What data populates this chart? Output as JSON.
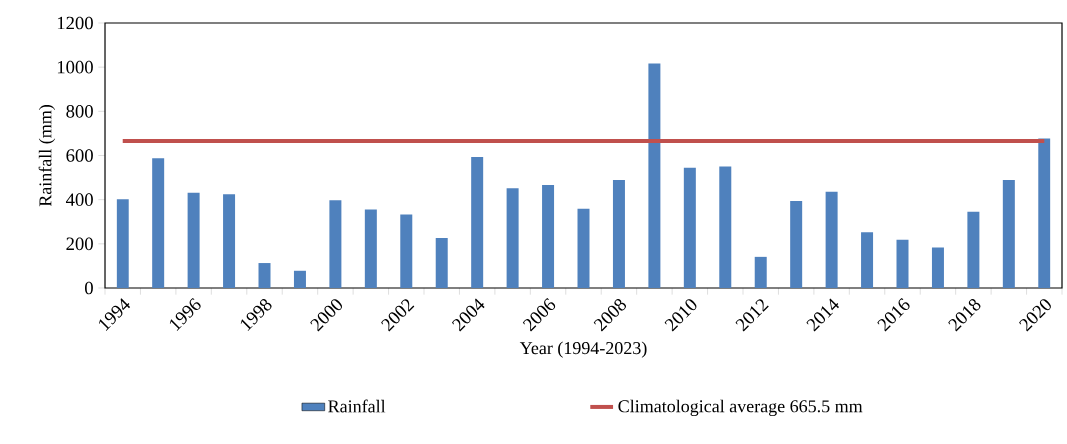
{
  "chart_data": {
    "type": "bar",
    "xlabel": "Year (1994-2023)",
    "ylabel": "Rainfall  (mm)",
    "categories": [
      "1994",
      null,
      "1996",
      null,
      "1998",
      null,
      "2000",
      null,
      "2002",
      null,
      "2004",
      null,
      "2006",
      null,
      "2008",
      null,
      "2010",
      null,
      "2012",
      null,
      "2014",
      null,
      "2016",
      null,
      "2018",
      null,
      "2020"
    ],
    "series": [
      {
        "name": "Rainfall",
        "color": "#4f81bd",
        "values": [
          402,
          587,
          431,
          425,
          113,
          78,
          397,
          355,
          333,
          226,
          593,
          452,
          466,
          359,
          489,
          1017,
          544,
          550,
          141,
          394,
          436,
          253,
          219,
          183,
          345,
          489,
          677
        ]
      }
    ],
    "ref_lines": [
      {
        "axis": "y",
        "value": 665.5,
        "label": "Climatological average 665.5 mm",
        "color": "#c0504d"
      }
    ],
    "ylim": [
      0,
      1200
    ],
    "yticks": [
      0,
      200,
      400,
      600,
      800,
      1000,
      1200
    ],
    "legend": "bottom",
    "grid": false
  }
}
